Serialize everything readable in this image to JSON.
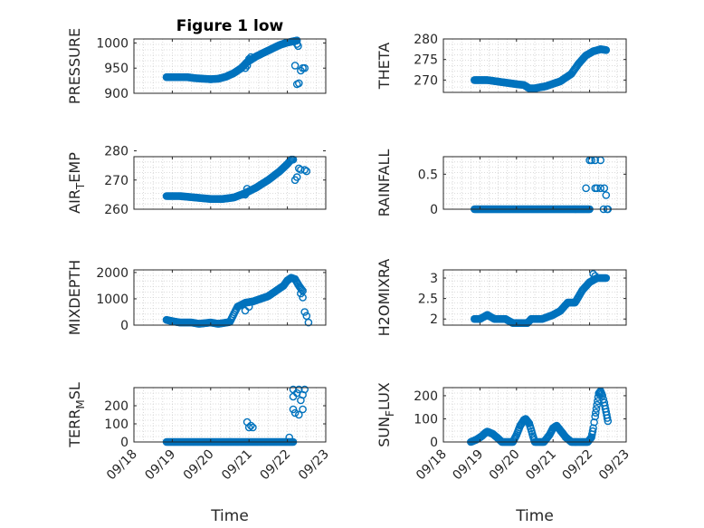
{
  "figure": {
    "title": "Figure 1 low",
    "marker_color": "#0072bd"
  },
  "chart_data": [
    {
      "id": "pressure",
      "type": "scatter",
      "marker": "circle",
      "ylabel": "PRESSURE",
      "yticks": [
        "900",
        "950",
        "1000"
      ],
      "ylim": [
        900,
        1008
      ],
      "xlim": [
        "09/18",
        "09/23"
      ],
      "xticks": [
        "09/18",
        "09/19",
        "09/20",
        "09/21",
        "09/22",
        "09/23"
      ],
      "grid": true,
      "title": "Figure 1 low",
      "segments": [
        {
          "points": [
            [
              18.85,
              932
            ],
            [
              19.4,
              932
            ],
            [
              19.6,
              930
            ],
            [
              20.0,
              928
            ],
            [
              20.2,
              929
            ],
            [
              20.4,
              933
            ],
            [
              20.6,
              940
            ],
            [
              20.8,
              950
            ],
            [
              20.95,
              962
            ],
            [
              21.2,
              974
            ],
            [
              21.5,
              985
            ],
            [
              21.8,
              996
            ],
            [
              22.0,
              1001
            ],
            [
              22.2,
              1004
            ],
            [
              22.25,
              1005
            ]
          ],
          "step": 0.025
        }
      ],
      "points": [
        [
          20.9,
          950
        ],
        [
          20.95,
          955
        ],
        [
          21.0,
          968
        ],
        [
          21.05,
          972
        ],
        [
          22.2,
          955
        ],
        [
          22.25,
          918
        ],
        [
          22.3,
          920
        ],
        [
          22.35,
          945
        ],
        [
          22.4,
          950
        ],
        [
          22.45,
          950
        ],
        [
          22.28,
          994
        ],
        [
          22.25,
          998
        ]
      ]
    },
    {
      "id": "theta",
      "type": "scatter",
      "marker": "circle",
      "ylabel": "THETA",
      "yticks": [
        "270",
        "275",
        "280"
      ],
      "ylim": [
        267,
        280
      ],
      "xlim": [
        "09/18",
        "09/23"
      ],
      "xticks": [
        "09/18",
        "09/19",
        "09/20",
        "09/21",
        "09/22",
        "09/23"
      ],
      "grid": true,
      "segments": [
        {
          "points": [
            [
              18.85,
              270
            ],
            [
              19.2,
              270
            ],
            [
              19.6,
              269.5
            ],
            [
              20.0,
              269
            ],
            [
              20.2,
              268.8
            ],
            [
              20.35,
              268
            ],
            [
              20.5,
              268
            ],
            [
              20.8,
              268.5
            ],
            [
              21.2,
              269.7
            ],
            [
              21.5,
              271.5
            ],
            [
              21.7,
              274
            ],
            [
              21.9,
              276
            ],
            [
              22.1,
              277
            ],
            [
              22.3,
              277.5
            ],
            [
              22.45,
              277.3
            ]
          ],
          "step": 0.025
        }
      ],
      "points": []
    },
    {
      "id": "air_temp",
      "type": "scatter",
      "marker": "circle",
      "ylabel": "AIR_TEMP",
      "ylabel_parts": [
        "AIR",
        "T",
        "EMP"
      ],
      "yticks": [
        "260",
        "270",
        "280"
      ],
      "ylim": [
        260,
        278
      ],
      "xlim": [
        "09/18",
        "09/23"
      ],
      "xticks": [
        "09/18",
        "09/19",
        "09/20",
        "09/21",
        "09/22",
        "09/23"
      ],
      "grid": true,
      "segments": [
        {
          "points": [
            [
              18.85,
              264.5
            ],
            [
              19.2,
              264.5
            ],
            [
              19.6,
              264
            ],
            [
              20.0,
              263.5
            ],
            [
              20.3,
              263.5
            ],
            [
              20.6,
              264
            ],
            [
              20.9,
              265.5
            ],
            [
              21.2,
              267.5
            ],
            [
              21.5,
              270
            ],
            [
              21.8,
              273
            ],
            [
              22.0,
              275.5
            ],
            [
              22.1,
              277
            ],
            [
              22.15,
              277
            ]
          ],
          "step": 0.025
        }
      ],
      "points": [
        [
          20.9,
          265
        ],
        [
          20.95,
          267
        ],
        [
          22.2,
          270
        ],
        [
          22.25,
          271
        ],
        [
          22.3,
          274
        ],
        [
          22.35,
          273.5
        ],
        [
          22.45,
          273.5
        ],
        [
          22.5,
          273
        ]
      ]
    },
    {
      "id": "rainfall",
      "type": "scatter",
      "marker": "circle",
      "ylabel": "RAINFALL",
      "yticks": [
        "0",
        "0.5"
      ],
      "ylim": [
        0,
        0.75
      ],
      "xlim": [
        "09/18",
        "09/23"
      ],
      "xticks": [
        "09/18",
        "09/19",
        "09/20",
        "09/21",
        "09/22",
        "09/23"
      ],
      "grid": true,
      "segments": [
        {
          "points": [
            [
              18.85,
              0
            ],
            [
              22.0,
              0
            ]
          ],
          "step": 0.025
        }
      ],
      "points": [
        [
          21.9,
          0.3
        ],
        [
          22.0,
          0.7
        ],
        [
          22.05,
          0.7
        ],
        [
          22.15,
          0.7
        ],
        [
          22.15,
          0.3
        ],
        [
          22.2,
          0.3
        ],
        [
          22.3,
          0.7
        ],
        [
          22.3,
          0.3
        ],
        [
          22.4,
          0.3
        ],
        [
          22.38,
          0.0
        ],
        [
          22.45,
          0.2
        ],
        [
          22.48,
          0.0
        ],
        [
          22.5,
          0.0
        ]
      ]
    },
    {
      "id": "mixdepth",
      "type": "scatter",
      "marker": "circle",
      "ylabel": "MIXDEPTH",
      "yticks": [
        "0",
        "1000",
        "2000"
      ],
      "ylim": [
        0,
        2100
      ],
      "xlim": [
        "09/18",
        "09/23"
      ],
      "xticks": [
        "09/18",
        "09/19",
        "09/20",
        "09/21",
        "09/22",
        "09/23"
      ],
      "grid": true,
      "segments": [
        {
          "points": [
            [
              18.85,
              200
            ],
            [
              19.0,
              150
            ],
            [
              19.2,
              100
            ],
            [
              19.5,
              100
            ],
            [
              19.7,
              50
            ],
            [
              20.0,
              100
            ],
            [
              20.2,
              50
            ],
            [
              20.5,
              120
            ],
            [
              20.7,
              700
            ],
            [
              20.9,
              850
            ],
            [
              21.1,
              900
            ],
            [
              21.3,
              1000
            ],
            [
              21.5,
              1100
            ],
            [
              21.7,
              1300
            ],
            [
              21.9,
              1500
            ],
            [
              22.0,
              1700
            ],
            [
              22.1,
              1800
            ],
            [
              22.2,
              1750
            ],
            [
              22.3,
              1500
            ],
            [
              22.4,
              1300
            ]
          ],
          "step": 0.025
        }
      ],
      "points": [
        [
          20.9,
          550
        ],
        [
          21.0,
          700
        ],
        [
          22.35,
          1200
        ],
        [
          22.4,
          1050
        ],
        [
          22.45,
          500
        ],
        [
          22.5,
          350
        ],
        [
          22.55,
          100
        ]
      ]
    },
    {
      "id": "h2omixra",
      "type": "scatter",
      "marker": "circle",
      "ylabel": "H2OMIXRA",
      "yticks": [
        "2",
        "2.5",
        "3"
      ],
      "ylim": [
        1.85,
        3.2
      ],
      "xlim": [
        "09/18",
        "09/23"
      ],
      "xticks": [
        "09/18",
        "09/19",
        "09/20",
        "09/21",
        "09/22",
        "09/23"
      ],
      "grid": true,
      "segments": [
        {
          "points": [
            [
              18.85,
              2.0
            ],
            [
              19.0,
              2.0
            ],
            [
              19.2,
              2.1
            ],
            [
              19.4,
              2.0
            ],
            [
              19.6,
              2.0
            ],
            [
              19.7,
              2.0
            ],
            [
              19.9,
              1.9
            ],
            [
              20.2,
              1.9
            ],
            [
              20.3,
              1.9
            ],
            [
              20.4,
              2.0
            ],
            [
              20.7,
              2.0
            ],
            [
              21.0,
              2.1
            ],
            [
              21.2,
              2.2
            ],
            [
              21.4,
              2.4
            ],
            [
              21.6,
              2.4
            ],
            [
              21.8,
              2.7
            ],
            [
              22.0,
              2.9
            ],
            [
              22.2,
              3.0
            ],
            [
              22.45,
              3.0
            ]
          ],
          "step": 0.025
        }
      ],
      "points": [
        [
          22.1,
          3.1
        ],
        [
          22.15,
          3.05
        ]
      ]
    },
    {
      "id": "terr_msl",
      "type": "scatter",
      "marker": "circle",
      "ylabel": "TERR_MSL",
      "ylabel_parts": [
        "TERR",
        "M",
        "SL"
      ],
      "yticks": [
        "0",
        "100",
        "200"
      ],
      "ylim": [
        0,
        300
      ],
      "xlim": [
        "09/18",
        "09/23"
      ],
      "xticks": [
        "09/18",
        "09/19",
        "09/20",
        "09/21",
        "09/22",
        "09/23"
      ],
      "grid": true,
      "segments": [
        {
          "points": [
            [
              18.85,
              0
            ],
            [
              22.15,
              0
            ]
          ],
          "step": 0.025
        }
      ],
      "points": [
        [
          20.95,
          110
        ],
        [
          21.0,
          80
        ],
        [
          21.05,
          90
        ],
        [
          21.1,
          80
        ],
        [
          22.05,
          25
        ],
        [
          22.15,
          290
        ],
        [
          22.15,
          250
        ],
        [
          22.15,
          180
        ],
        [
          22.2,
          160
        ],
        [
          22.25,
          270
        ],
        [
          22.3,
          290
        ],
        [
          22.3,
          150
        ],
        [
          22.35,
          230
        ],
        [
          22.4,
          260
        ],
        [
          22.45,
          290
        ],
        [
          22.4,
          180
        ]
      ]
    },
    {
      "id": "sun_flux",
      "type": "scatter",
      "marker": "circle",
      "ylabel": "SUN_FLUX",
      "ylabel_parts": [
        "SUN",
        "F",
        "LUX"
      ],
      "yticks": [
        "0",
        "100",
        "200"
      ],
      "ylim": [
        0,
        235
      ],
      "xlim": [
        "09/18",
        "09/23"
      ],
      "xticks": [
        "09/18",
        "09/19",
        "09/20",
        "09/21",
        "09/22",
        "09/23"
      ],
      "grid": true,
      "segments": [
        {
          "points": [
            [
              18.75,
              0
            ],
            [
              18.9,
              10
            ],
            [
              19.05,
              25
            ],
            [
              19.15,
              40
            ],
            [
              19.2,
              45
            ],
            [
              19.35,
              35
            ],
            [
              19.5,
              15
            ],
            [
              19.6,
              0
            ],
            [
              19.9,
              0
            ],
            [
              20.0,
              30
            ],
            [
              20.1,
              70
            ],
            [
              20.2,
              95
            ],
            [
              20.25,
              100
            ],
            [
              20.35,
              80
            ],
            [
              20.45,
              25
            ],
            [
              20.5,
              0
            ],
            [
              20.75,
              0
            ],
            [
              20.9,
              30
            ],
            [
              21.0,
              60
            ],
            [
              21.1,
              70
            ],
            [
              21.2,
              50
            ],
            [
              21.35,
              20
            ],
            [
              21.5,
              0
            ],
            [
              21.95,
              0
            ],
            [
              22.05,
              20
            ],
            [
              22.1,
              60
            ],
            [
              22.15,
              110
            ],
            [
              22.2,
              160
            ],
            [
              22.25,
              210
            ],
            [
              22.3,
              220
            ],
            [
              22.35,
              200
            ],
            [
              22.4,
              170
            ],
            [
              22.45,
              130
            ],
            [
              22.5,
              90
            ]
          ],
          "step": 0.02
        }
      ],
      "points": []
    }
  ],
  "axes_labels": {
    "xlabel": "Time"
  }
}
